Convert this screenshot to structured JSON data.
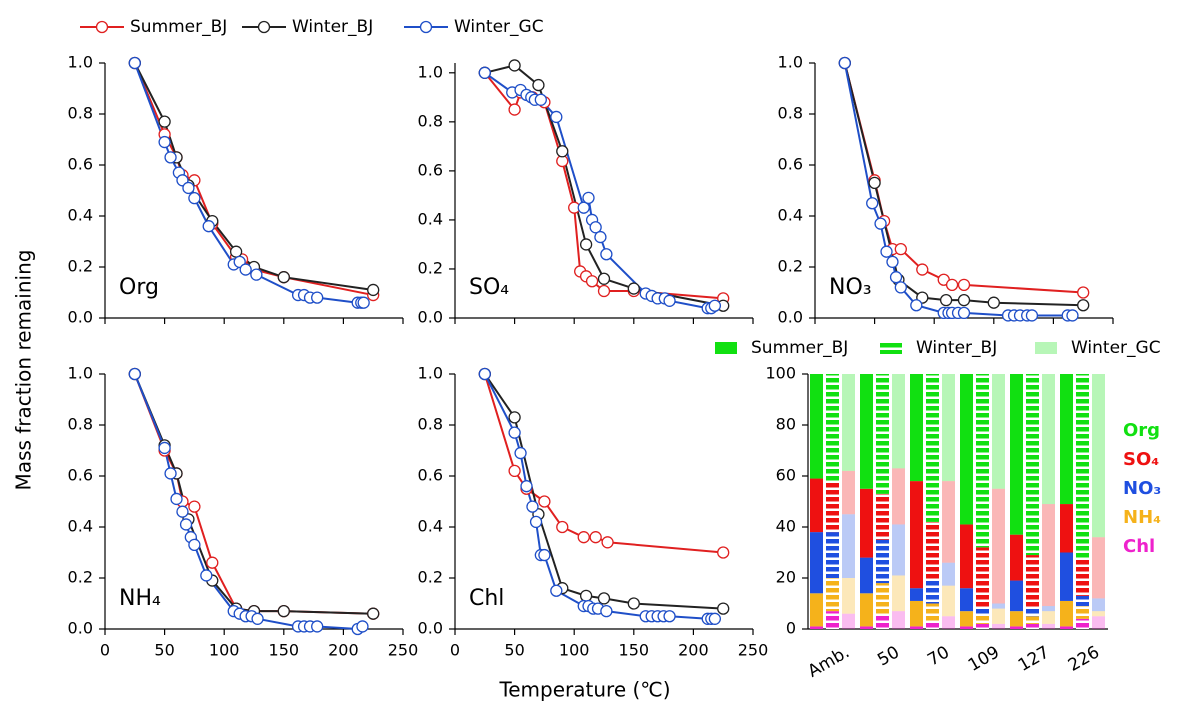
{
  "chart_data": [
    {
      "type": "line",
      "label": "Org",
      "ylabel": "Mass fraction remaining",
      "xlim": [
        0,
        250
      ],
      "xticks": [
        0,
        50,
        100,
        150,
        200,
        250
      ],
      "xtick_labels": false,
      "ylim": [
        0,
        1.0
      ],
      "yticks": [
        {
          "value": 0,
          "label": "0.0"
        },
        {
          "value": 0.2,
          "label": "0.2"
        },
        {
          "value": 0.4,
          "label": "0.4"
        },
        {
          "value": 0.6,
          "label": "0.6"
        },
        {
          "value": 0.8,
          "label": "0.8"
        },
        {
          "value": 1.0,
          "label": "1.0"
        }
      ],
      "series": [
        {
          "name": "Summer_BJ",
          "color": "#e02020",
          "x": [
            25,
            50,
            60,
            65,
            75,
            90,
            110,
            115,
            125,
            150,
            225
          ],
          "values": [
            1.0,
            0.72,
            0.63,
            0.56,
            0.54,
            0.37,
            0.24,
            0.23,
            0.19,
            0.16,
            0.09
          ]
        },
        {
          "name": "Winter_BJ",
          "color": "#222222",
          "x": [
            25,
            50,
            60,
            70,
            90,
            110,
            125,
            150,
            225
          ],
          "values": [
            1.0,
            0.77,
            0.63,
            0.52,
            0.38,
            0.26,
            0.2,
            0.16,
            0.11
          ]
        },
        {
          "name": "Winter_GC",
          "color": "#1f4fc8",
          "x": [
            25,
            50,
            55,
            62,
            65,
            70,
            75,
            87,
            108,
            113,
            118,
            127,
            162,
            167,
            172,
            178,
            212,
            215,
            217
          ],
          "values": [
            1.0,
            0.69,
            0.63,
            0.57,
            0.54,
            0.51,
            0.47,
            0.36,
            0.21,
            0.22,
            0.19,
            0.17,
            0.09,
            0.09,
            0.08,
            0.08,
            0.06,
            0.06,
            0.06
          ]
        }
      ]
    },
    {
      "type": "line",
      "label": "SO₄",
      "xlim": [
        0,
        250
      ],
      "xticks": [
        0,
        50,
        100,
        150,
        200,
        250
      ],
      "xtick_labels": false,
      "ylim": [
        0,
        1.04
      ],
      "yticks": [
        {
          "value": 0,
          "label": "0.0"
        },
        {
          "value": 0.2,
          "label": "0.2"
        },
        {
          "value": 0.4,
          "label": "0.4"
        },
        {
          "value": 0.6,
          "label": "0.6"
        },
        {
          "value": 0.8,
          "label": "0.8"
        },
        {
          "value": 1.0,
          "label": "1.0"
        }
      ],
      "series": [
        {
          "color": "#e02020",
          "x": [
            25,
            50,
            55,
            65,
            75,
            90,
            100,
            105,
            110,
            115,
            125,
            150,
            225
          ],
          "values": [
            1.0,
            0.85,
            0.92,
            0.9,
            0.88,
            0.64,
            0.45,
            0.19,
            0.17,
            0.15,
            0.11,
            0.11,
            0.08
          ]
        },
        {
          "color": "#222222",
          "x": [
            25,
            50,
            70,
            90,
            110,
            125,
            150,
            225
          ],
          "values": [
            1.0,
            1.03,
            0.95,
            0.68,
            0.3,
            0.16,
            0.12,
            0.05
          ]
        },
        {
          "color": "#1f4fc8",
          "x": [
            25,
            48,
            55,
            60,
            64,
            67,
            72,
            85,
            108,
            112,
            115,
            118,
            122,
            127,
            160,
            165,
            170,
            176,
            180,
            212,
            215,
            218
          ],
          "values": [
            1.0,
            0.92,
            0.93,
            0.91,
            0.9,
            0.89,
            0.89,
            0.82,
            0.45,
            0.49,
            0.4,
            0.37,
            0.33,
            0.26,
            0.1,
            0.09,
            0.08,
            0.08,
            0.07,
            0.04,
            0.04,
            0.05
          ]
        }
      ]
    },
    {
      "type": "line",
      "label": "NO₃",
      "xlim": [
        0,
        250
      ],
      "xticks": [
        0,
        50,
        100,
        150,
        200,
        250
      ],
      "xtick_labels": false,
      "ylim": [
        0,
        1.0
      ],
      "yticks": [
        {
          "value": 0,
          "label": "0.0"
        },
        {
          "value": 0.2,
          "label": "0.2"
        },
        {
          "value": 0.4,
          "label": "0.4"
        },
        {
          "value": 0.6,
          "label": "0.6"
        },
        {
          "value": 0.8,
          "label": "0.8"
        },
        {
          "value": 1.0,
          "label": "1.0"
        }
      ],
      "series": [
        {
          "color": "#e02020",
          "x": [
            25,
            50,
            58,
            65,
            72,
            90,
            108,
            115,
            125,
            225
          ],
          "values": [
            1.0,
            0.54,
            0.38,
            0.27,
            0.27,
            0.19,
            0.15,
            0.13,
            0.13,
            0.1
          ]
        },
        {
          "color": "#222222",
          "x": [
            25,
            50,
            70,
            90,
            110,
            125,
            150,
            225
          ],
          "values": [
            1.0,
            0.53,
            0.15,
            0.08,
            0.07,
            0.07,
            0.06,
            0.05
          ]
        },
        {
          "color": "#1f4fc8",
          "x": [
            25,
            48,
            55,
            60,
            65,
            68,
            72,
            85,
            108,
            112,
            115,
            120,
            125,
            162,
            167,
            172,
            178,
            182,
            212,
            216
          ],
          "values": [
            1.0,
            0.45,
            0.37,
            0.26,
            0.22,
            0.16,
            0.12,
            0.05,
            0.02,
            0.02,
            0.02,
            0.02,
            0.02,
            0.01,
            0.01,
            0.01,
            0.01,
            0.01,
            0.01,
            0.01
          ]
        }
      ]
    },
    {
      "type": "line",
      "label": "NH₄",
      "xlim": [
        0,
        250
      ],
      "xticks": [
        0,
        50,
        100,
        150,
        200,
        250
      ],
      "ylim": [
        0,
        1.0
      ],
      "yticks": [
        {
          "value": 0,
          "label": "0.0"
        },
        {
          "value": 0.2,
          "label": "0.2"
        },
        {
          "value": 0.4,
          "label": "0.4"
        },
        {
          "value": 0.6,
          "label": "0.6"
        },
        {
          "value": 0.8,
          "label": "0.8"
        },
        {
          "value": 1.0,
          "label": "1.0"
        }
      ],
      "series": [
        {
          "color": "#e02020",
          "x": [
            25,
            50,
            60,
            65,
            75,
            90,
            110,
            125,
            150,
            225
          ],
          "values": [
            1.0,
            0.7,
            0.61,
            0.5,
            0.48,
            0.26,
            0.08,
            0.07,
            0.07,
            0.06
          ]
        },
        {
          "color": "#222222",
          "x": [
            25,
            50,
            60,
            70,
            90,
            110,
            125,
            150,
            225
          ],
          "values": [
            1.0,
            0.72,
            0.61,
            0.43,
            0.19,
            0.08,
            0.07,
            0.07,
            0.06
          ]
        },
        {
          "color": "#1f4fc8",
          "x": [
            25,
            50,
            55,
            60,
            65,
            68,
            72,
            75,
            85,
            108,
            113,
            118,
            123,
            128,
            162,
            167,
            172,
            178,
            212,
            216
          ],
          "values": [
            1.0,
            0.71,
            0.61,
            0.51,
            0.46,
            0.41,
            0.36,
            0.33,
            0.21,
            0.07,
            0.06,
            0.05,
            0.05,
            0.04,
            0.01,
            0.01,
            0.01,
            0.01,
            0.0,
            0.01
          ]
        }
      ]
    },
    {
      "type": "line",
      "label": "Chl",
      "xlabel": "Temperature (℃)",
      "xlim": [
        0,
        250
      ],
      "xticks": [
        0,
        50,
        100,
        150,
        200,
        250
      ],
      "ylim": [
        0,
        1.0
      ],
      "yticks": [
        {
          "value": 0,
          "label": "0.0"
        },
        {
          "value": 0.2,
          "label": "0.2"
        },
        {
          "value": 0.4,
          "label": "0.4"
        },
        {
          "value": 0.6,
          "label": "0.6"
        },
        {
          "value": 0.8,
          "label": "0.8"
        },
        {
          "value": 1.0,
          "label": "1.0"
        }
      ],
      "series": [
        {
          "color": "#e02020",
          "x": [
            25,
            50,
            60,
            75,
            90,
            108,
            118,
            128,
            225
          ],
          "values": [
            1.0,
            0.62,
            0.55,
            0.5,
            0.4,
            0.36,
            0.36,
            0.34,
            0.3
          ]
        },
        {
          "color": "#222222",
          "x": [
            25,
            50,
            70,
            90,
            110,
            125,
            150,
            225
          ],
          "values": [
            1.0,
            0.83,
            0.45,
            0.16,
            0.13,
            0.12,
            0.1,
            0.08
          ]
        },
        {
          "color": "#1f4fc8",
          "x": [
            25,
            50,
            55,
            60,
            65,
            68,
            72,
            75,
            85,
            108,
            112,
            116,
            120,
            127,
            160,
            165,
            170,
            175,
            180,
            212,
            215,
            218
          ],
          "values": [
            1.0,
            0.77,
            0.69,
            0.56,
            0.48,
            0.42,
            0.29,
            0.29,
            0.15,
            0.09,
            0.09,
            0.08,
            0.08,
            0.07,
            0.05,
            0.05,
            0.05,
            0.05,
            0.05,
            0.04,
            0.04,
            0.04
          ]
        }
      ]
    },
    {
      "type": "stacked-bar",
      "categories": [
        "Amb.",
        "50",
        "70",
        "109",
        "127",
        "226"
      ],
      "ylim": [
        0,
        100
      ],
      "yticks": [
        0,
        20,
        40,
        60,
        80,
        100
      ],
      "components": [
        {
          "name": "Org",
          "color": "#11e011"
        },
        {
          "name": "SO₄",
          "color": "#ee1111"
        },
        {
          "name": "NO₃",
          "color": "#1f4fe0"
        },
        {
          "name": "NH₄",
          "color": "#f5b21b"
        },
        {
          "name": "Chl",
          "color": "#ee22cc"
        }
      ],
      "groups": [
        {
          "name": "Summer_BJ",
          "style": "solid",
          "values": [
            [
              41,
              45,
              42,
              59,
              63,
              51
            ],
            [
              21,
              27,
              42,
              25,
              18,
              19
            ],
            [
              24,
              14,
              5,
              9,
              12,
              19
            ],
            [
              13,
              13,
              10,
              6,
              6,
              10
            ],
            [
              1,
              1,
              1,
              1,
              1,
              1
            ]
          ]
        },
        {
          "name": "Winter_BJ",
          "style": "dashed",
          "values": [
            [
              42,
              47,
              58,
              68,
              71,
              72
            ],
            [
              20,
              18,
              23,
              24,
              21,
              15
            ],
            [
              18,
              17,
              9,
              2,
              3,
              4
            ],
            [
              13,
              12,
              7,
              4,
              3,
              5
            ],
            [
              7,
              6,
              3,
              2,
              2,
              4
            ]
          ]
        },
        {
          "name": "Winter_GC",
          "style": "light",
          "values": [
            [
              38,
              37,
              42,
              45,
              51,
              64
            ],
            [
              17,
              22,
              32,
              45,
              40,
              24
            ],
            [
              25,
              20,
              9,
              2,
              2,
              5
            ],
            [
              14,
              14,
              12,
              6,
              5,
              2
            ],
            [
              6,
              7,
              5,
              2,
              2,
              5
            ]
          ]
        }
      ]
    }
  ]
}
